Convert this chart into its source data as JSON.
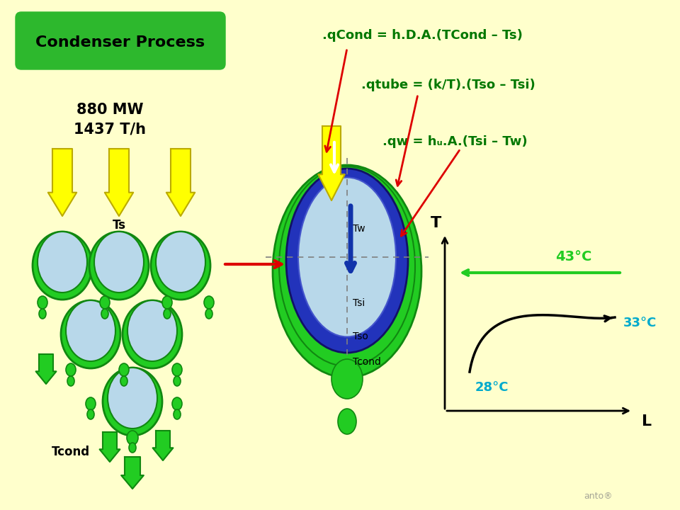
{
  "bg_color": "#FFFFCC",
  "title_box_color": "#2DB82D",
  "title_text": "Condenser Process",
  "title_text_color": "black",
  "power_text": "880 MW\n1437 T/h",
  "green_color": "#22CC22",
  "dark_green": "#118811",
  "blue_color": "#2233BB",
  "light_blue": "#B8D8EA",
  "yellow_color": "#FFFF00",
  "yellow_outline": "#BBAA00",
  "red_color": "#DD0000",
  "eq1": ".qCond = h.D.A.(TCond – Ts)",
  "eq2": ".qtube = (k/T).(Tso – Tsi)",
  "eq3": ".qw = hᵤ.A.(Tsi – Tw)",
  "eq_color": "#007700",
  "temp_43": "43°C",
  "temp_33": "33°C",
  "temp_28": "28°C",
  "cyan_color": "#00AACC",
  "watermark": "anto®"
}
